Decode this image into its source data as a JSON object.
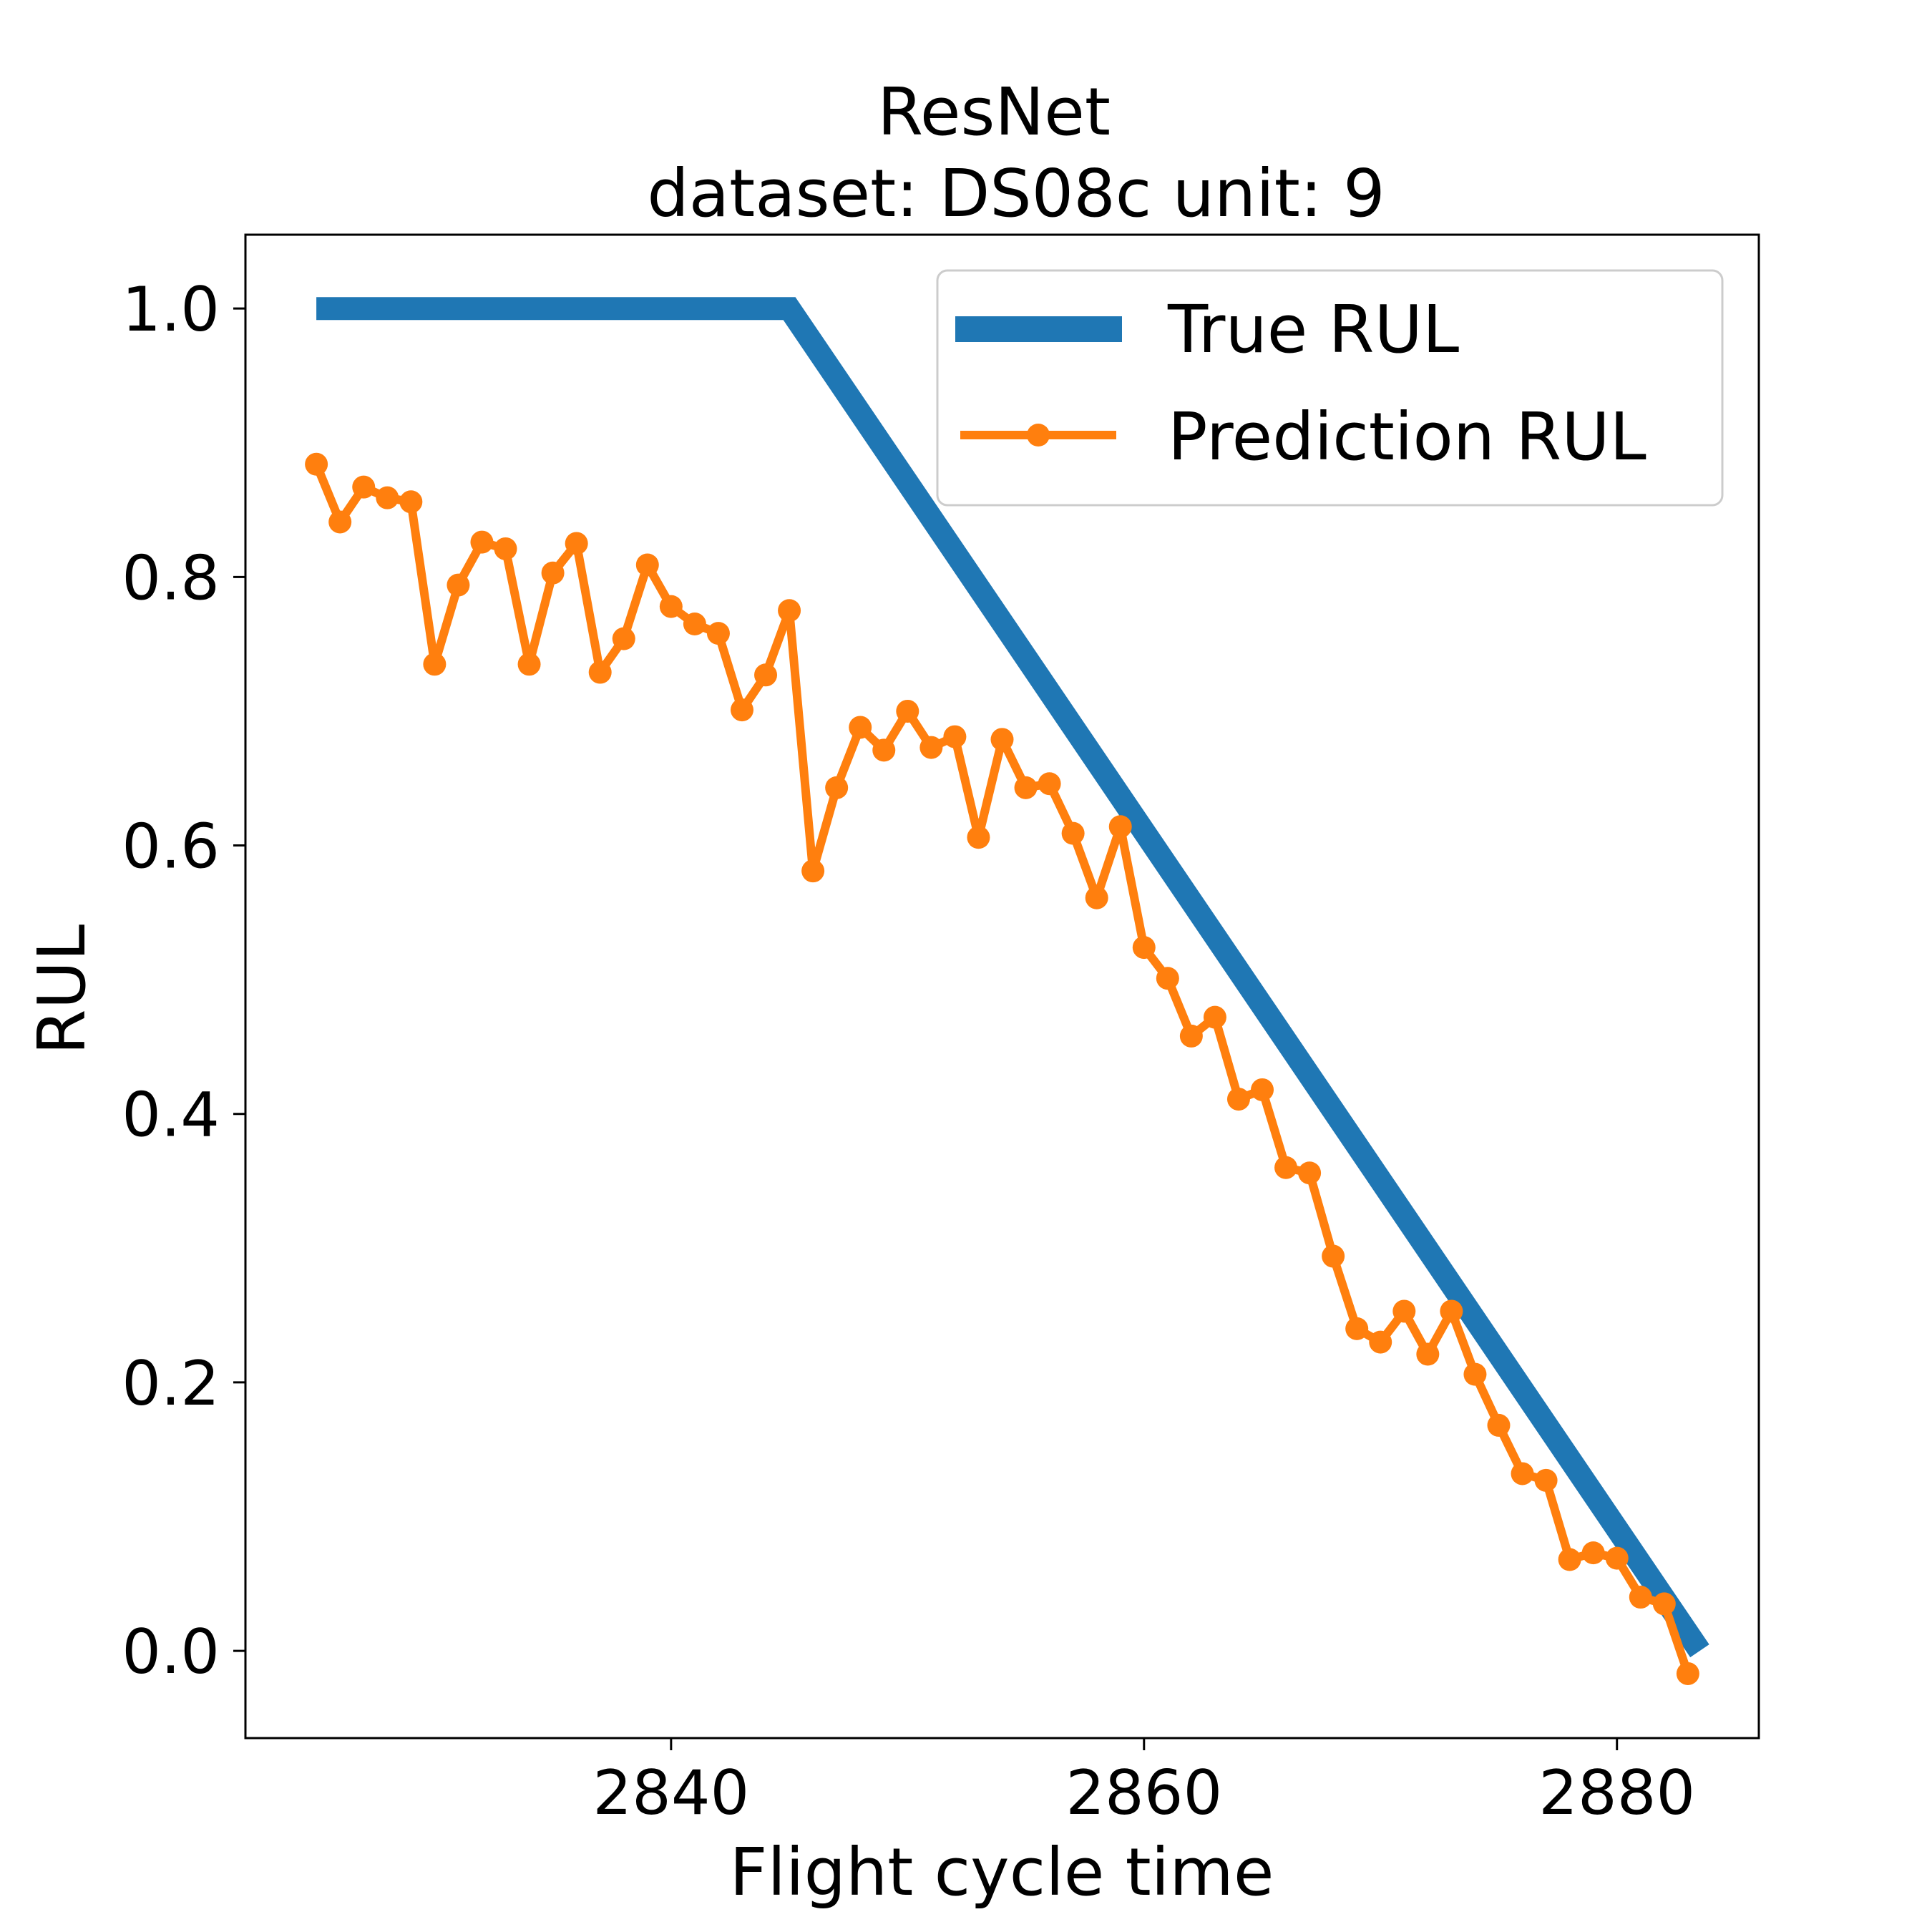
{
  "chart_data": {
    "type": "line",
    "title": "ResNet",
    "subtitle": "dataset: DS08c unit: 9",
    "xlabel": "Flight cycle time",
    "ylabel": "RUL",
    "xlim": [
      2822.0,
      2886.0
    ],
    "ylim": [
      -0.065,
      1.055
    ],
    "x_ticks": [
      2840,
      2860,
      2880
    ],
    "y_ticks": [
      0.0,
      0.2,
      0.4,
      0.6,
      0.8,
      1.0
    ],
    "x_tick_labels": [
      "2840",
      "2860",
      "2880"
    ],
    "y_tick_labels": [
      "0.0",
      "0.2",
      "0.4",
      "0.6",
      "0.8",
      "1.0"
    ],
    "grid": false,
    "legend_position": "top-right",
    "series": [
      {
        "name": "True RUL",
        "color": "#1f77b4",
        "style": "line",
        "x": [
          2825,
          2845,
          2883.5
        ],
        "y": [
          1.0,
          1.0,
          0.0
        ]
      },
      {
        "name": "Prediction RUL",
        "color": "#ff7f0e",
        "style": "line-markers",
        "x": [
          2825,
          2826,
          2827,
          2828,
          2829,
          2830,
          2831,
          2832,
          2833,
          2834,
          2835,
          2836,
          2837,
          2838,
          2839,
          2840,
          2841,
          2842,
          2843,
          2844,
          2845,
          2846,
          2847,
          2848,
          2849,
          2850,
          2851,
          2852,
          2853,
          2854,
          2855,
          2856,
          2857,
          2858,
          2859,
          2860,
          2861,
          2862,
          2863,
          2864,
          2865,
          2866,
          2867,
          2868,
          2869,
          2870,
          2871,
          2872,
          2873,
          2874,
          2875,
          2876,
          2877,
          2878,
          2879,
          2880,
          2881,
          2882,
          2883
        ],
        "y": [
          0.884,
          0.841,
          0.867,
          0.859,
          0.856,
          0.735,
          0.794,
          0.826,
          0.821,
          0.735,
          0.803,
          0.825,
          0.729,
          0.754,
          0.809,
          0.778,
          0.765,
          0.758,
          0.701,
          0.727,
          0.775,
          0.581,
          0.643,
          0.688,
          0.671,
          0.7,
          0.673,
          0.681,
          0.606,
          0.679,
          0.643,
          0.646,
          0.609,
          0.561,
          0.614,
          0.524,
          0.501,
          0.458,
          0.472,
          0.411,
          0.418,
          0.36,
          0.356,
          0.294,
          0.24,
          0.23,
          0.253,
          0.221,
          0.253,
          0.206,
          0.168,
          0.132,
          0.127,
          0.068,
          0.073,
          0.069,
          0.04,
          0.035,
          -0.017
        ]
      }
    ]
  }
}
